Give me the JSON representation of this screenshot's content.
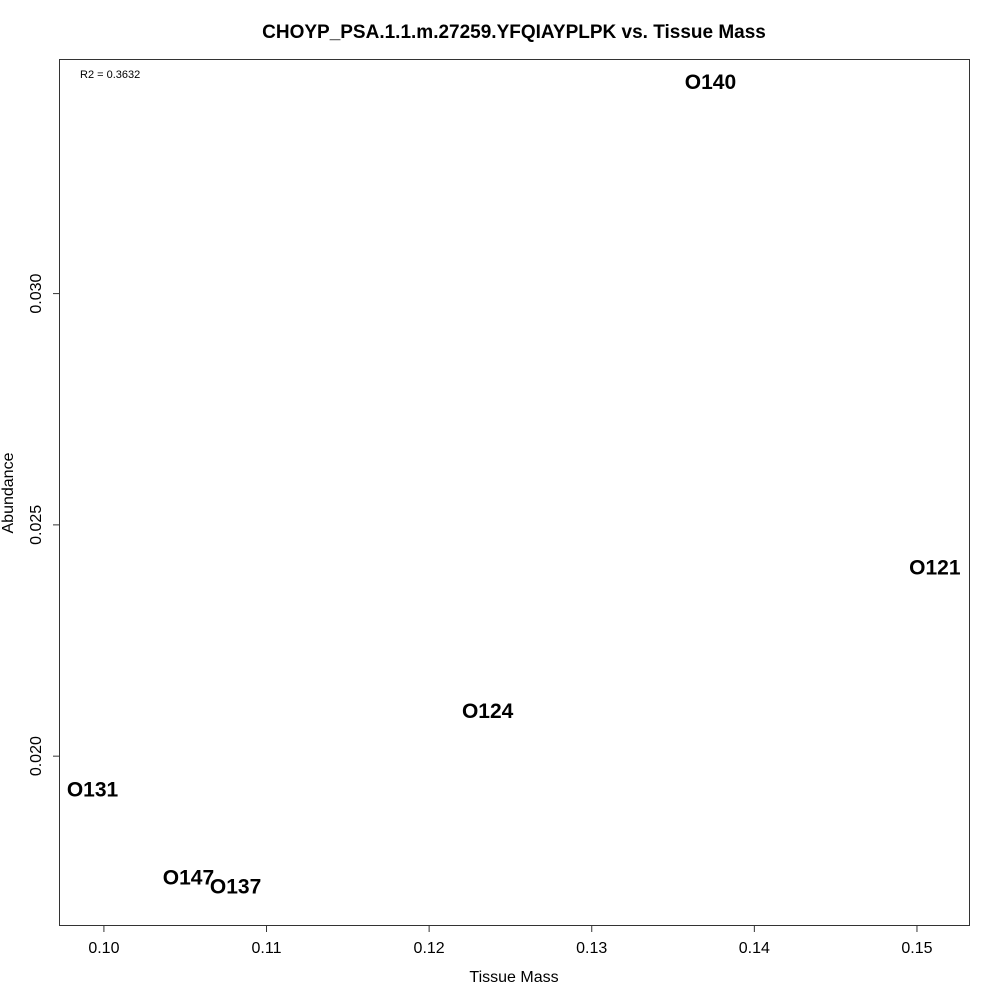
{
  "chart_data": {
    "type": "scatter",
    "title": "CHOYP_PSA.1.1.m.27259.YFQIAYPLPK vs. Tissue Mass",
    "xlabel": "Tissue Mass",
    "ylabel": "Abundance",
    "annotation": "R2 = 0.3632",
    "xlim": [
      0.0973,
      0.1532
    ],
    "ylim": [
      0.01635,
      0.03505
    ],
    "x_ticks": [
      0.1,
      0.11,
      0.12,
      0.13,
      0.14,
      0.15
    ],
    "x_tick_labels": [
      "0.10",
      "0.11",
      "0.12",
      "0.13",
      "0.14",
      "0.15"
    ],
    "y_ticks": [
      0.02,
      0.025,
      0.03
    ],
    "y_tick_labels": [
      "0.020",
      "0.025",
      "0.030"
    ],
    "grid": false,
    "points": [
      {
        "label": "O140",
        "x": 0.1373,
        "y": 0.0346
      },
      {
        "label": "O121",
        "x": 0.1511,
        "y": 0.0241
      },
      {
        "label": "O124",
        "x": 0.1236,
        "y": 0.021
      },
      {
        "label": "O131",
        "x": 0.0993,
        "y": 0.0193
      },
      {
        "label": "O147",
        "x": 0.1052,
        "y": 0.0174
      },
      {
        "label": "O137",
        "x": 0.1081,
        "y": 0.0172
      }
    ]
  }
}
